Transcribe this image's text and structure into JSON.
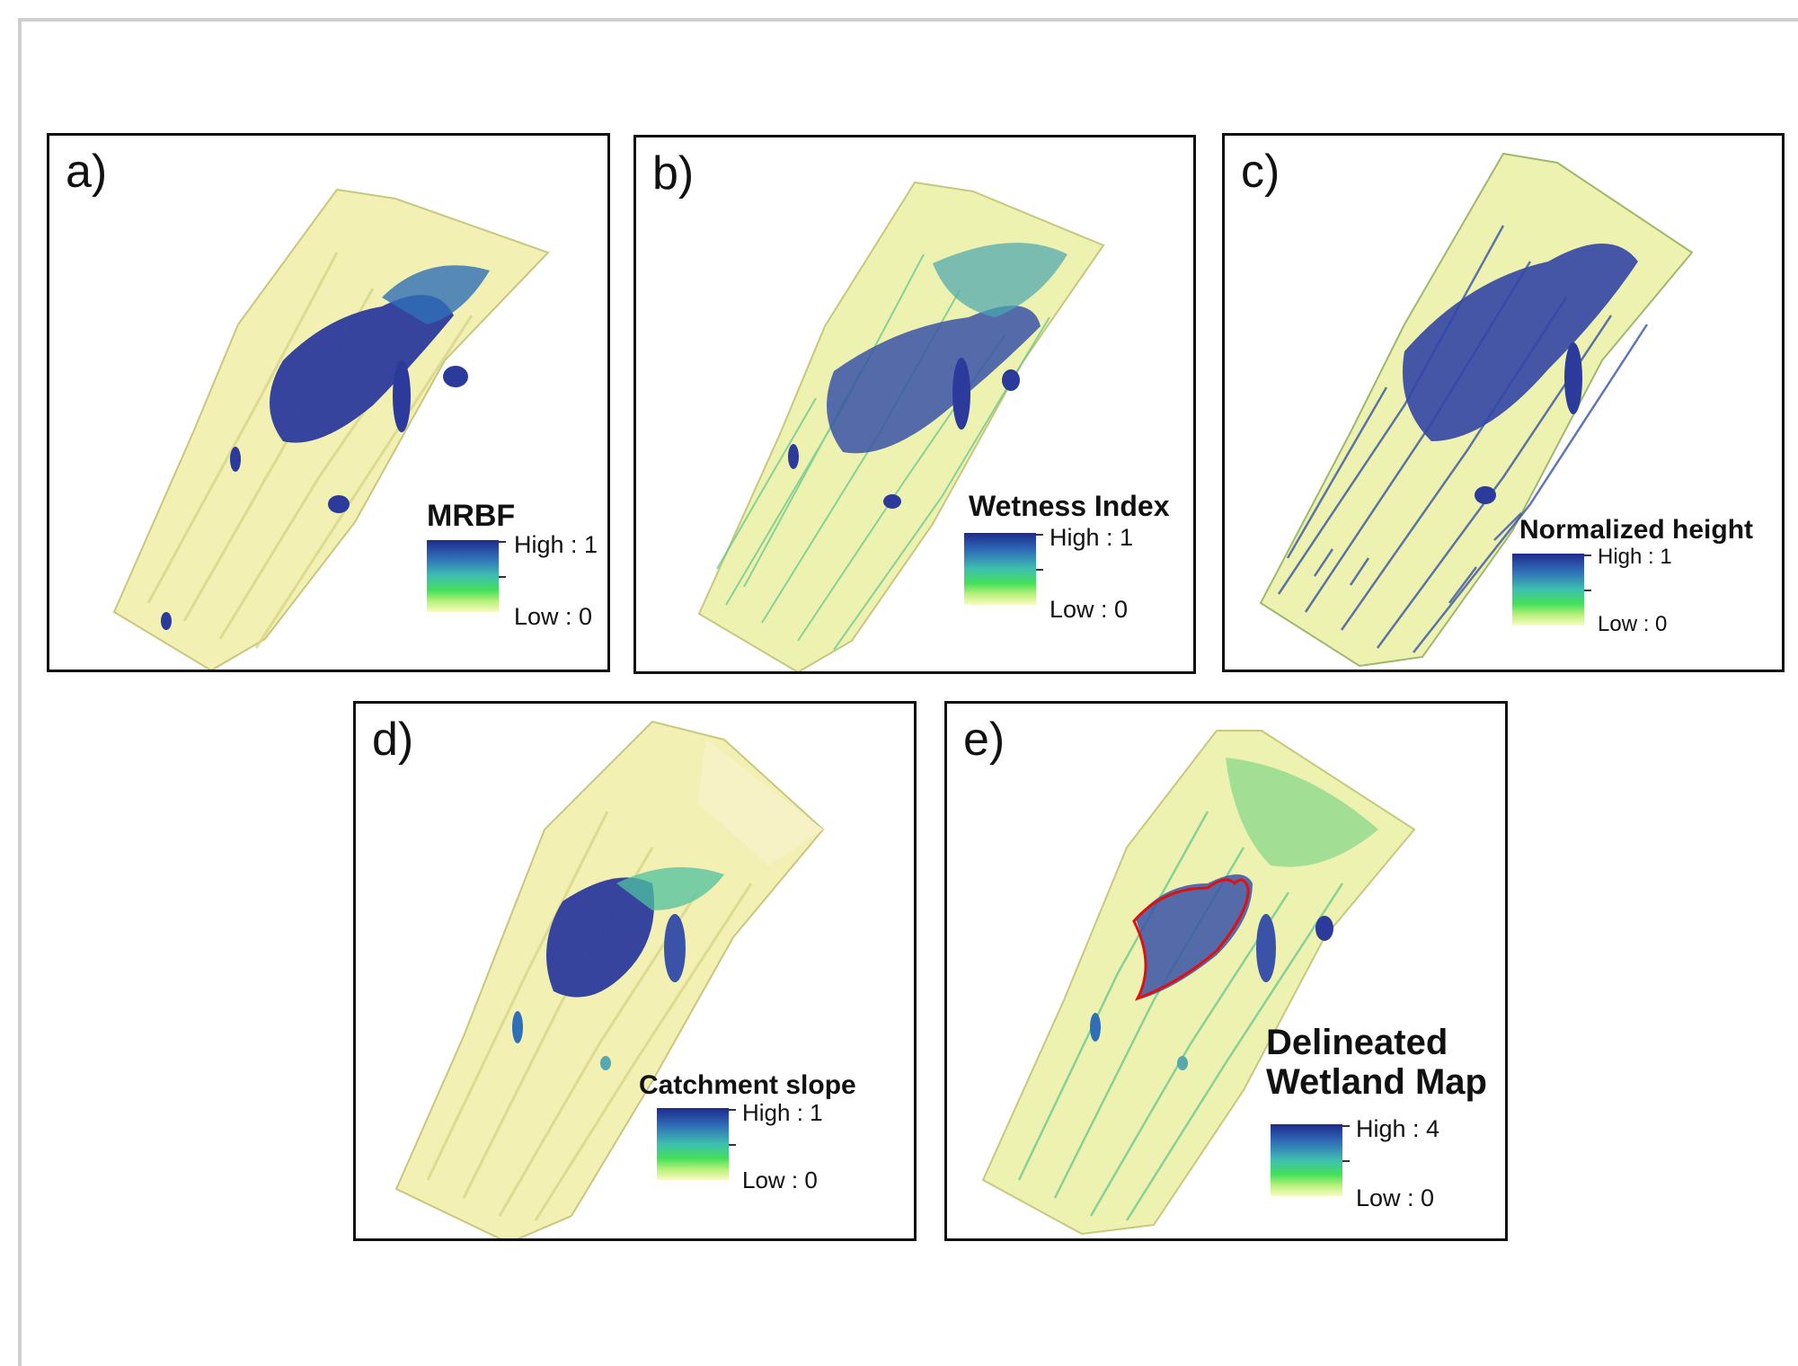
{
  "panels": [
    {
      "id": "a",
      "label": "a)",
      "legend_title": "MRBF",
      "legend_high": "High : 1",
      "legend_low": "Low : 0"
    },
    {
      "id": "b",
      "label": "b)",
      "legend_title": "Wetness Index",
      "legend_high": "High : 1",
      "legend_low": "Low : 0"
    },
    {
      "id": "c",
      "label": "c)",
      "legend_title": "Normalized height",
      "legend_high": "High : 1",
      "legend_low": "Low : 0"
    },
    {
      "id": "d",
      "label": "d)",
      "legend_title": "Catchment slope",
      "legend_high": "High : 1",
      "legend_low": "Low : 0"
    },
    {
      "id": "e",
      "label": "e)",
      "legend_title": "Delineated\nWetland Map",
      "legend_high": "High : 4",
      "legend_low": "Low : 0"
    }
  ],
  "colors": {
    "low": "#f6f4b8",
    "mid": "#4fd39a",
    "high": "#2c3a9c",
    "delineation_outline": "#e01010"
  }
}
